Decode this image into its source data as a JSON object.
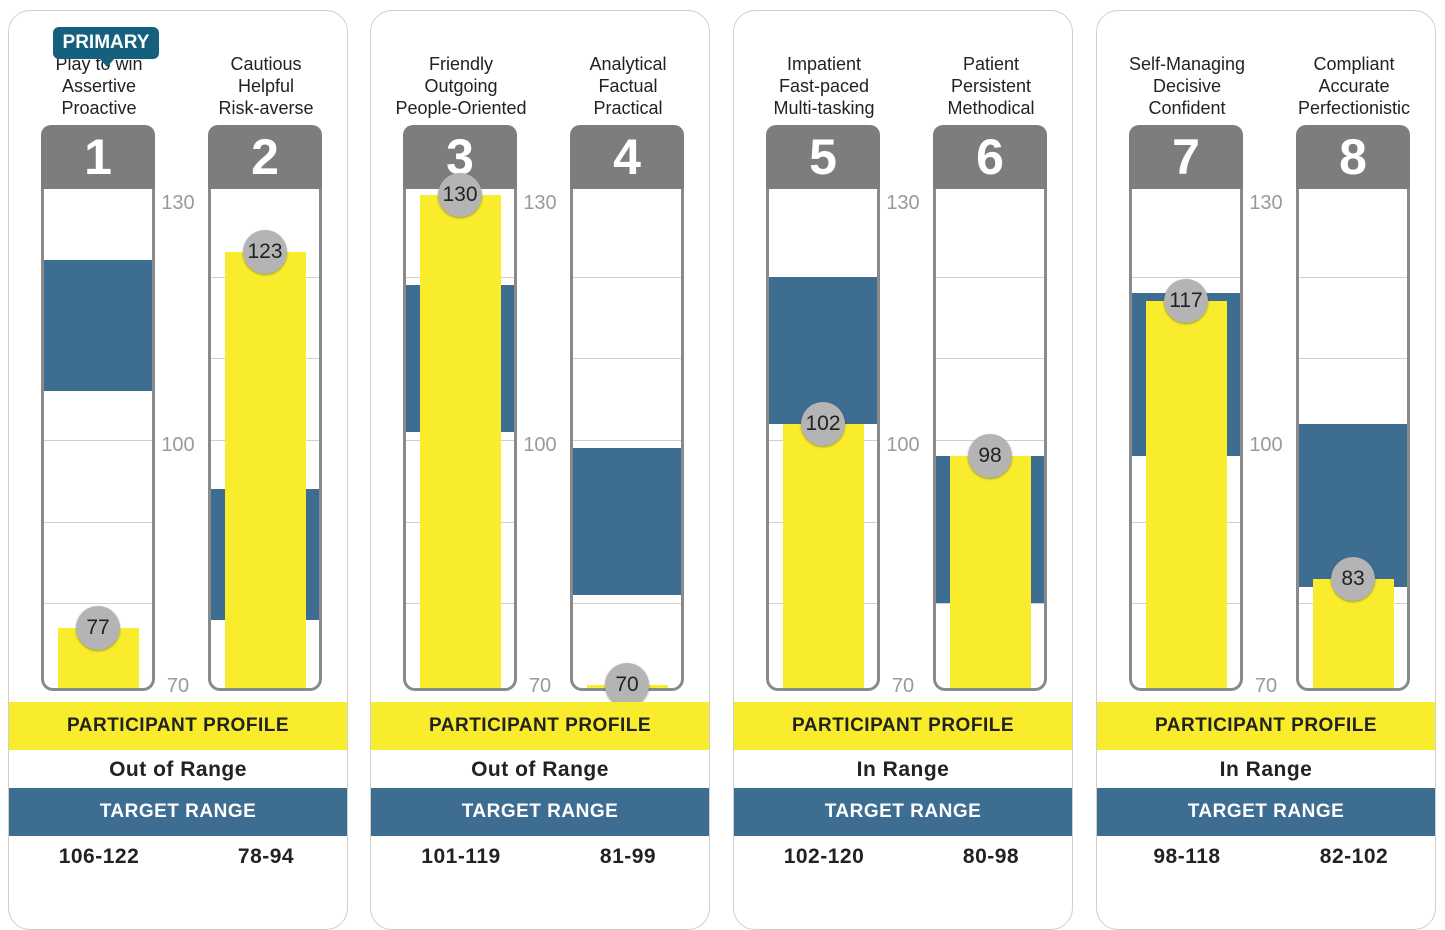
{
  "primary_badge": "PRIMARY",
  "axis_ticks": [
    "130",
    "100",
    "70"
  ],
  "colors": {
    "participant": "#f8ec2d",
    "target": "#3e6d92",
    "header": "#7d7d7d",
    "badge": "#15607f"
  },
  "labels": {
    "participant_profile": "PARTICIPANT PROFILE",
    "target_range": "TARGET RANGE"
  },
  "chart_data": {
    "type": "bar",
    "ylim": [
      70,
      130
    ],
    "yticks": [
      130,
      100,
      70
    ],
    "gridlines": [
      120,
      110,
      100,
      90,
      80
    ],
    "panels": [
      {
        "status": "Out of Range",
        "gauges": [
          {
            "number": "1",
            "traits": [
              "Play to win",
              "Assertive",
              "Proactive"
            ],
            "value": 77,
            "value_label": "77",
            "target_low": 106,
            "target_high": 122,
            "range_label": "106-122",
            "primary": true
          },
          {
            "number": "2",
            "traits": [
              "Cautious",
              "Helpful",
              "Risk-averse"
            ],
            "value": 123,
            "value_label": "123",
            "target_low": 78,
            "target_high": 94,
            "range_label": "78-94"
          }
        ]
      },
      {
        "status": "Out of Range",
        "gauges": [
          {
            "number": "3",
            "traits": [
              "Friendly",
              "Outgoing",
              "People-Oriented"
            ],
            "value": 130,
            "value_label": "130",
            "target_low": 101,
            "target_high": 119,
            "range_label": "101-119"
          },
          {
            "number": "4",
            "traits": [
              "Analytical",
              "Factual",
              "Practical"
            ],
            "value": 70,
            "value_label": "70",
            "target_low": 81,
            "target_high": 99,
            "range_label": "81-99"
          }
        ]
      },
      {
        "status": "In Range",
        "gauges": [
          {
            "number": "5",
            "traits": [
              "Impatient",
              "Fast-paced",
              "Multi-tasking"
            ],
            "value": 102,
            "value_label": "102",
            "target_low": 102,
            "target_high": 120,
            "range_label": "102-120"
          },
          {
            "number": "6",
            "traits": [
              "Patient",
              "Persistent",
              "Methodical"
            ],
            "value": 98,
            "value_label": "98",
            "target_low": 80,
            "target_high": 98,
            "range_label": "80-98"
          }
        ]
      },
      {
        "status": "In Range",
        "gauges": [
          {
            "number": "7",
            "traits": [
              "Self-Managing",
              "Decisive",
              "Confident"
            ],
            "value": 117,
            "value_label": "117",
            "target_low": 98,
            "target_high": 118,
            "range_label": "98-118"
          },
          {
            "number": "8",
            "traits": [
              "Compliant",
              "Accurate",
              "Perfectionistic"
            ],
            "value": 83,
            "value_label": "83",
            "target_low": 82,
            "target_high": 102,
            "range_label": "82-102"
          }
        ]
      }
    ]
  }
}
